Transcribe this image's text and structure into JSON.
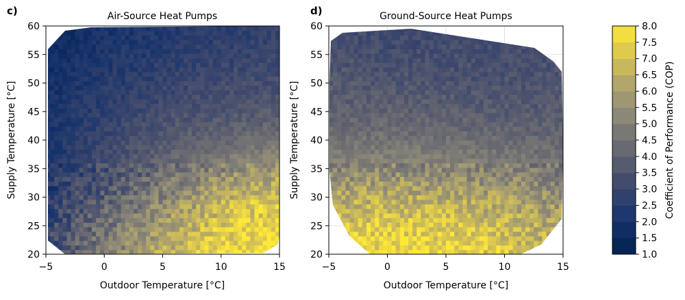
{
  "panels": [
    {
      "letter": "c)",
      "title": "Air-Source Heat Pumps",
      "xlabel": "Outdoor Temperature [°C]",
      "ylabel": "Supply Temperature [°C]"
    },
    {
      "letter": "d)",
      "title": "Ground-Source Heat Pumps",
      "xlabel": "Outdoor Temperature [°C]",
      "ylabel": "Supply Temperature [°C]"
    }
  ],
  "colorbar": {
    "label": "Coefficient of Performance (COP)",
    "ticks": [
      "1.0",
      "1.5",
      "2.0",
      "2.5",
      "3.0",
      "3.5",
      "4.0",
      "4.5",
      "5.0",
      "5.5",
      "6.0",
      "6.5",
      "7.0",
      "7.5",
      "8.0"
    ],
    "colormap": "cividis",
    "color_low": "#00204c",
    "color_high": "#fee838"
  },
  "chart_data": [
    {
      "type": "heatmap",
      "title": "Air-Source Heat Pumps",
      "panel": "c)",
      "xlabel": "Outdoor Temperature [°C]",
      "ylabel": "Supply Temperature [°C]",
      "xlim": [
        -5,
        15
      ],
      "ylim": [
        20,
        60
      ],
      "xticks": [
        "−5",
        "0",
        "5",
        "10",
        "15"
      ],
      "yticks": [
        "20",
        "25",
        "30",
        "35",
        "40",
        "45",
        "50",
        "55",
        "60"
      ],
      "grid": true,
      "colorbar_label": "Coefficient of Performance (COP)",
      "zlim": [
        1.0,
        8.0
      ],
      "x": [
        -5,
        0,
        5,
        10,
        15
      ],
      "y": [
        20,
        25,
        30,
        35,
        40,
        45,
        50,
        55,
        60
      ],
      "z": [
        [
          3.0,
          5.0,
          6.5,
          7.5,
          8.0
        ],
        [
          2.8,
          4.5,
          6.0,
          7.2,
          7.8
        ],
        [
          2.5,
          3.8,
          5.2,
          6.5,
          7.2
        ],
        [
          2.3,
          3.3,
          4.3,
          5.2,
          5.8
        ],
        [
          2.1,
          3.0,
          3.7,
          4.2,
          4.5
        ],
        [
          2.0,
          2.7,
          3.3,
          3.6,
          3.8
        ],
        [
          1.9,
          2.5,
          2.9,
          3.2,
          3.3
        ],
        [
          1.7,
          2.2,
          2.5,
          2.8,
          3.0
        ],
        [
          1.5,
          2.0,
          2.3,
          2.6,
          2.8
        ]
      ]
    },
    {
      "type": "heatmap",
      "title": "Ground-Source Heat Pumps",
      "panel": "d)",
      "xlabel": "Outdoor Temperature [°C]",
      "ylabel": "Supply Temperature [°C]",
      "xlim": [
        -5,
        15
      ],
      "ylim": [
        20,
        60
      ],
      "xticks": [
        "−5",
        "0",
        "5",
        "10",
        "15"
      ],
      "yticks": [
        "20",
        "25",
        "30",
        "35",
        "40",
        "45",
        "50",
        "55",
        "60"
      ],
      "grid": true,
      "colorbar_label": "Coefficient of Performance (COP)",
      "zlim": [
        1.0,
        8.0
      ],
      "x": [
        -5,
        0,
        5,
        10,
        15
      ],
      "y": [
        20,
        25,
        30,
        35,
        40,
        45,
        50,
        55,
        60
      ],
      "z": [
        [
          7.5,
          7.8,
          7.8,
          7.2,
          6.5
        ],
        [
          7.0,
          7.3,
          7.2,
          6.8,
          6.2
        ],
        [
          6.2,
          6.4,
          6.3,
          6.0,
          5.5
        ],
        [
          5.2,
          5.3,
          5.2,
          5.0,
          4.8
        ],
        [
          4.5,
          4.6,
          4.5,
          4.3,
          4.2
        ],
        [
          4.0,
          4.0,
          3.9,
          3.8,
          3.8
        ],
        [
          3.7,
          3.6,
          3.5,
          3.5,
          3.6
        ],
        [
          3.4,
          3.3,
          3.3,
          3.3,
          3.4
        ],
        [
          3.2,
          3.1,
          3.1,
          3.2,
          3.3
        ]
      ]
    }
  ]
}
